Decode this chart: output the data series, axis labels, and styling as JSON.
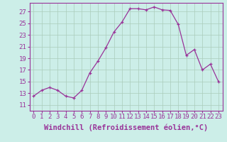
{
  "x": [
    0,
    1,
    2,
    3,
    4,
    5,
    6,
    7,
    8,
    9,
    10,
    11,
    12,
    13,
    14,
    15,
    16,
    17,
    18,
    19,
    20,
    21,
    22,
    23
  ],
  "y": [
    12.5,
    13.5,
    14.0,
    13.5,
    12.5,
    12.2,
    13.5,
    16.5,
    18.5,
    20.8,
    23.5,
    25.2,
    27.5,
    27.5,
    27.3,
    27.8,
    27.3,
    27.2,
    24.8,
    19.5,
    20.5,
    17.0,
    18.0,
    15.0
  ],
  "line_color": "#993399",
  "marker": "+",
  "bg_color": "#cceee8",
  "grid_color": "#aaccbb",
  "tick_color": "#993399",
  "label_color": "#993399",
  "xlabel": "Windchill (Refroidissement éolien,°C)",
  "ylabel_ticks": [
    11,
    13,
    15,
    17,
    19,
    21,
    23,
    25,
    27
  ],
  "xlim": [
    -0.5,
    23.5
  ],
  "ylim": [
    10.0,
    28.5
  ],
  "xticks": [
    0,
    1,
    2,
    3,
    4,
    5,
    6,
    7,
    8,
    9,
    10,
    11,
    12,
    13,
    14,
    15,
    16,
    17,
    18,
    19,
    20,
    21,
    22,
    23
  ],
  "font_size": 6.5,
  "xlabel_font_size": 7.5
}
